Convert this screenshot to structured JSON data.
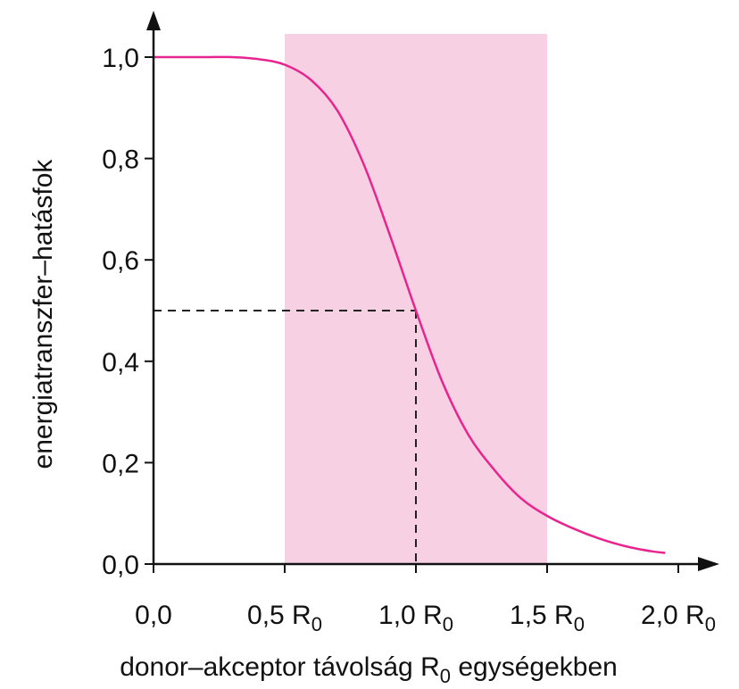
{
  "chart_data": {
    "type": "line",
    "xlabel": "donor–akceptor távolság R",
    "xlabel_sub": "0",
    "xlabel_tail": " egységekben",
    "ylabel": "energiatranszfer–hatásfok",
    "xlim": [
      0,
      2.0
    ],
    "ylim": [
      0,
      1.0
    ],
    "x_ticks": [
      {
        "value": 0.0,
        "label": "0,0",
        "sub": ""
      },
      {
        "value": 0.5,
        "label": "0,5 R",
        "sub": "0"
      },
      {
        "value": 1.0,
        "label": "1,0 R",
        "sub": "0"
      },
      {
        "value": 1.5,
        "label": "1,5 R",
        "sub": "0"
      },
      {
        "value": 2.0,
        "label": "2,0 R",
        "sub": "0"
      }
    ],
    "y_ticks": [
      {
        "value": 0.0,
        "label": "0,0"
      },
      {
        "value": 0.2,
        "label": "0,2"
      },
      {
        "value": 0.4,
        "label": "0,4"
      },
      {
        "value": 0.6,
        "label": "0,6"
      },
      {
        "value": 0.8,
        "label": "0,8"
      },
      {
        "value": 1.0,
        "label": "1,0"
      }
    ],
    "series": [
      {
        "x": [
          0.0,
          0.1,
          0.2,
          0.3,
          0.4,
          0.5,
          0.6,
          0.7,
          0.8,
          0.9,
          1.0,
          1.1,
          1.2,
          1.3,
          1.4,
          1.5,
          1.6,
          1.7,
          1.8,
          1.9,
          1.95
        ],
        "y": [
          1.0,
          1.0,
          1.0,
          1.0,
          0.996,
          0.985,
          0.955,
          0.895,
          0.79,
          0.65,
          0.5,
          0.36,
          0.255,
          0.185,
          0.13,
          0.095,
          0.07,
          0.05,
          0.035,
          0.025,
          0.022
        ],
        "color": "#e8258f"
      }
    ],
    "highlight_band": {
      "x_from": 0.5,
      "x_to": 1.5,
      "color": "#f7d0e3"
    },
    "reference_point": {
      "x": 1.0,
      "y": 0.5
    },
    "grid": false
  }
}
